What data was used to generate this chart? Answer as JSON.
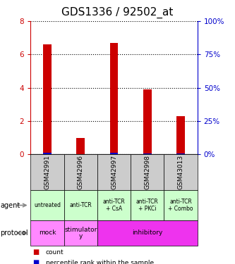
{
  "title": "GDS1336 / 92502_at",
  "samples": [
    "GSM42991",
    "GSM42996",
    "GSM42997",
    "GSM42998",
    "GSM43013"
  ],
  "count_values": [
    6.6,
    1.0,
    6.7,
    3.9,
    2.3
  ],
  "percentile_values": [
    1.2,
    0.15,
    1.3,
    0.65,
    0.6
  ],
  "ylim_left": [
    0,
    8
  ],
  "ylim_right": [
    0,
    100
  ],
  "yticks_left": [
    0,
    2,
    4,
    6,
    8
  ],
  "yticks_right": [
    0,
    25,
    50,
    75,
    100
  ],
  "bar_color_count": "#cc0000",
  "bar_color_pct": "#0000cc",
  "bar_width": 0.25,
  "agent_labels": [
    "untreated",
    "anti-TCR",
    "anti-TCR\n+ CsA",
    "anti-TCR\n+ PKCi",
    "anti-TCR\n+ Combo"
  ],
  "agent_bg": "#ccffcc",
  "protocol_groups": [
    {
      "indices": [
        0
      ],
      "label": "mock",
      "color": "#ff88ff"
    },
    {
      "indices": [
        1
      ],
      "label": "stimulator\ny",
      "color": "#ff88ff"
    },
    {
      "indices": [
        2,
        3,
        4
      ],
      "label": "inhibitory",
      "color": "#ee33ee"
    }
  ],
  "sample_bg": "#cccccc",
  "right_axis_color": "#0000cc",
  "left_axis_color": "#cc0000",
  "title_fontsize": 11,
  "tick_fontsize": 7.5,
  "label_fontsize": 7
}
